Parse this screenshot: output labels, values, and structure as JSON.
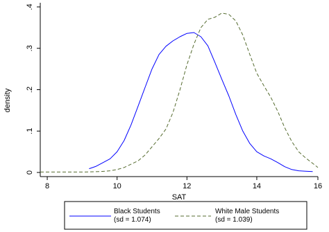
{
  "chart_data": {
    "type": "line",
    "xlabel": "SAT",
    "ylabel": "density",
    "xlim": [
      7.8,
      15.75
    ],
    "ylim": [
      -0.01,
      0.41
    ],
    "x_ticks": [
      {
        "v": 8,
        "label": "8"
      },
      {
        "v": 10,
        "label": "10"
      },
      {
        "v": 12,
        "label": "12"
      },
      {
        "v": 14,
        "label": "14"
      },
      {
        "v": 15.75,
        "label": "16"
      }
    ],
    "y_ticks": [
      {
        "v": 0,
        "label": "0"
      },
      {
        "v": 0.1,
        "label": ".1"
      },
      {
        "v": 0.2,
        "label": ".2"
      },
      {
        "v": 0.3,
        "label": ".3"
      },
      {
        "v": 0.4,
        "label": ".4"
      }
    ],
    "grid": false,
    "legend_position": "bottom",
    "series": [
      {
        "key": "black",
        "name": "Black Students",
        "subtitle": "(sd = 1.074)",
        "color": "#0000ff",
        "dash": "solid",
        "points": [
          [
            9.2,
            0.009
          ],
          [
            9.4,
            0.015
          ],
          [
            9.6,
            0.024
          ],
          [
            9.8,
            0.033
          ],
          [
            10.0,
            0.05
          ],
          [
            10.2,
            0.077
          ],
          [
            10.4,
            0.115
          ],
          [
            10.6,
            0.16
          ],
          [
            10.8,
            0.205
          ],
          [
            11.0,
            0.25
          ],
          [
            11.2,
            0.285
          ],
          [
            11.4,
            0.305
          ],
          [
            11.6,
            0.318
          ],
          [
            11.8,
            0.328
          ],
          [
            12.0,
            0.336
          ],
          [
            12.2,
            0.338
          ],
          [
            12.4,
            0.328
          ],
          [
            12.6,
            0.306
          ],
          [
            12.8,
            0.266
          ],
          [
            13.0,
            0.225
          ],
          [
            13.2,
            0.185
          ],
          [
            13.4,
            0.14
          ],
          [
            13.6,
            0.1
          ],
          [
            13.8,
            0.07
          ],
          [
            14.0,
            0.05
          ],
          [
            14.2,
            0.04
          ],
          [
            14.4,
            0.033
          ],
          [
            14.6,
            0.024
          ],
          [
            14.8,
            0.014
          ],
          [
            15.0,
            0.007
          ],
          [
            15.2,
            0.004
          ],
          [
            15.4,
            0.003
          ],
          [
            15.6,
            0.002
          ]
        ]
      },
      {
        "key": "white",
        "name": "White Male Students",
        "subtitle": "(sd = 1.039)",
        "color": "#556b2f",
        "dash": "dashed",
        "points": [
          [
            7.8,
            0.001
          ],
          [
            8.5,
            0.001
          ],
          [
            9.0,
            0.001
          ],
          [
            9.5,
            0.002
          ],
          [
            9.8,
            0.004
          ],
          [
            10.0,
            0.007
          ],
          [
            10.2,
            0.012
          ],
          [
            10.4,
            0.02
          ],
          [
            10.6,
            0.028
          ],
          [
            10.8,
            0.042
          ],
          [
            11.0,
            0.062
          ],
          [
            11.2,
            0.082
          ],
          [
            11.4,
            0.105
          ],
          [
            11.6,
            0.145
          ],
          [
            11.8,
            0.2
          ],
          [
            12.0,
            0.26
          ],
          [
            12.2,
            0.31
          ],
          [
            12.4,
            0.35
          ],
          [
            12.6,
            0.37
          ],
          [
            12.8,
            0.375
          ],
          [
            13.0,
            0.385
          ],
          [
            13.2,
            0.382
          ],
          [
            13.4,
            0.366
          ],
          [
            13.6,
            0.332
          ],
          [
            13.8,
            0.285
          ],
          [
            14.0,
            0.24
          ],
          [
            14.2,
            0.21
          ],
          [
            14.4,
            0.182
          ],
          [
            14.6,
            0.148
          ],
          [
            14.8,
            0.108
          ],
          [
            15.0,
            0.075
          ],
          [
            15.2,
            0.05
          ],
          [
            15.4,
            0.035
          ],
          [
            15.6,
            0.022
          ],
          [
            15.75,
            0.012
          ]
        ]
      }
    ]
  }
}
